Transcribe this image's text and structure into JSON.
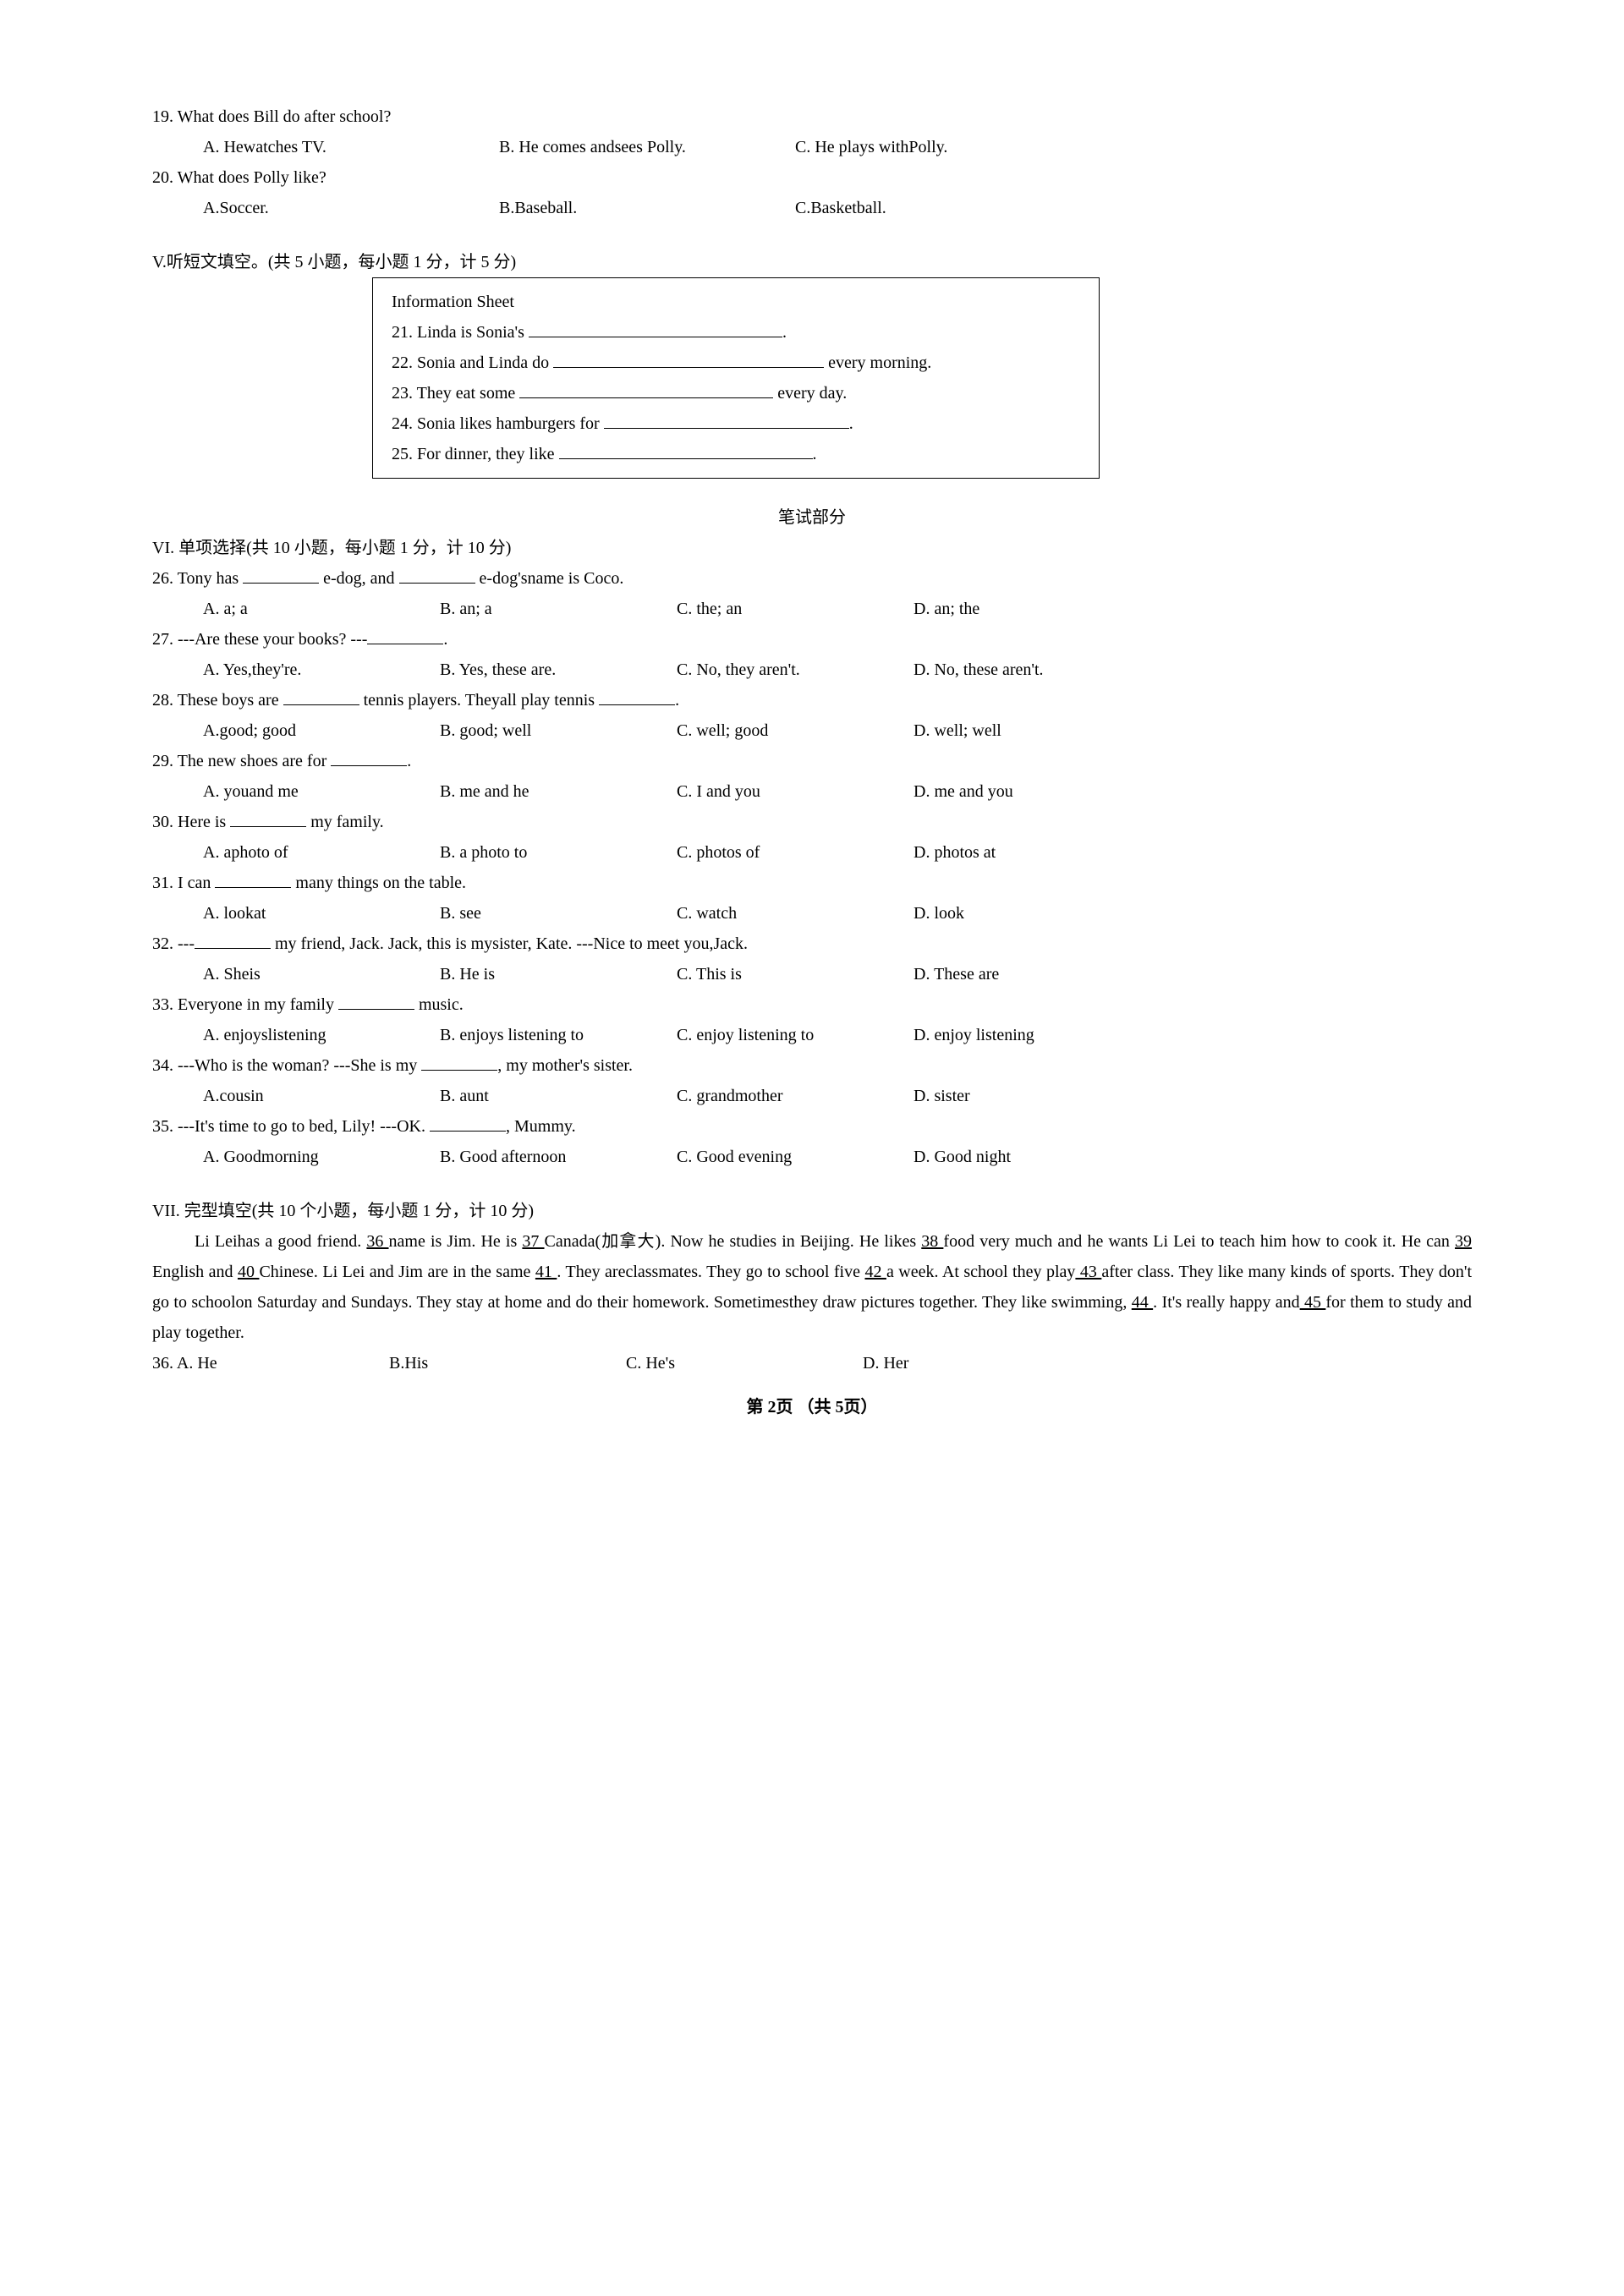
{
  "q19": {
    "stem": "19. What does Bill do after school?",
    "a": "A. Hewatches TV.",
    "b": "B. He comes andsees Polly.",
    "c": "C. He plays withPolly."
  },
  "q20": {
    "stem": "20. What does Polly like?",
    "a": "A.Soccer.",
    "b": "B.Baseball.",
    "c": "C.Basketball."
  },
  "sectionV": "V.听短文填空。(共 5 小题，每小题 1 分，计 5 分)",
  "info_title": "Information Sheet",
  "info21a": "21. Linda is  Sonia's ",
  "info21b": ".",
  "info22a": "22. Sonia and  Linda do ",
  "info22b": " every morning.",
  "info23a": "23. They eat  some ",
  "info23b": " every day.",
  "info24a": "24. Sonia  likes hamburgers for ",
  "info24b": ".",
  "info25a": "25. For  dinner, they like ",
  "info25b": ".",
  "written_title": "笔试部分",
  "sectionVI": "VI. 单项选择(共 10 小题，每小题 1 分，计 10 分)",
  "q26": {
    "stem_a": "26. Tony has ",
    "stem_b": " e-dog, and ",
    "stem_c": " e-dog'sname is Coco.",
    "a": "A. a; a",
    "b": "B. an; a",
    "c": "C. the; an",
    "d": "D. an; the"
  },
  "q27": {
    "stem_a": "27. ---Are these your books?   ---",
    "stem_b": ".",
    "a": "A. Yes,they're.",
    "b": "B. Yes, these are.",
    "c": "C. No, they aren't.",
    "d": "D. No, these aren't."
  },
  "q28": {
    "stem_a": "28. These boys are ",
    "stem_b": " tennis players. Theyall play tennis ",
    "stem_c": ".",
    "a": "A.good; good",
    "b": "B. good; well",
    "c": "C. well; good",
    "d": "D. well; well"
  },
  "q29": {
    "stem_a": "29. The new shoes are for ",
    "stem_b": ".",
    "a": "A. youand me",
    "b": "B. me and he",
    "c": "C. I and you",
    "d": "D. me and you"
  },
  "q30": {
    "stem_a": "30. Here is ",
    "stem_b": " my family.",
    "a": "A. aphoto of",
    "b": "B. a photo to",
    "c": "C. photos of",
    "d": "D. photos at"
  },
  "q31": {
    "stem_a": "31. I can ",
    "stem_b": " many things on the table.",
    "a": "A. lookat",
    "b": "B. see",
    "c": "C. watch",
    "d": "D. look"
  },
  "q32": {
    "stem_a": "32. ---",
    "stem_b": " my friend, Jack. Jack, this is mysister, Kate.    ---Nice to meet you,Jack.",
    "a": "A. Sheis",
    "b": "B. He is",
    "c": "C. This is",
    "d": "D. These are"
  },
  "q33": {
    "stem_a": "33. Everyone in my family ",
    "stem_b": " music.",
    "a": "A. enjoyslistening",
    "b": "B. enjoys listening to",
    "c": "C. enjoy listening to",
    "d": "D. enjoy listening"
  },
  "q34": {
    "stem_a": "34. ---Who is the woman?   ---She is my ",
    "stem_b": ", my mother's sister.",
    "a": "A.cousin",
    "b": "B. aunt",
    "c": "C. grandmother",
    "d": "D. sister"
  },
  "q35": {
    "stem_a": "35. ---It's time to go to bed, Lily!   ---OK. ",
    "stem_b": ", Mummy.",
    "a": "A. Goodmorning",
    "b": "B. Good afternoon",
    "c": "C. Good evening",
    "d": "D. Good night"
  },
  "sectionVII": "VII. 完型填空(共 10 个小题，每小题 1 分，计 10 分)",
  "cloze": {
    "p1a": "Li Leihas a good friend. ",
    "b36": "   36   ",
    "p1b": " name is Jim. He is ",
    "b37": "   37   ",
    "p1c": " Canada(加拿大). Now he studies in Beijing. He likes ",
    "b38": "   38   ",
    "p1d": "food very much and he wants Li Lei to teach him how to cook it. He can ",
    "b39": "   39   ",
    "p1e": "English and ",
    "b40": "   40   ",
    "p1f": " Chinese. Li Lei and Jim are in the same ",
    "b41": "   41   ",
    "p1g": ". They areclassmates. They go to school five ",
    "b42": "   42   ",
    "p1h": " a week. At school they play",
    "b43": "   43   ",
    "p1i": " after class. They like many kinds of sports. They don't go to schoolon Saturday and Sundays. They stay at home and do their homework. Sometimesthey draw pictures together. They like swimming, ",
    "b44": "   44   ",
    "p1j": ". It's really happy and",
    "b45": "   45   ",
    "p1k": " for them to study and play together."
  },
  "q36": {
    "stem": "36. A. He",
    "b": "B.His",
    "c": "C. He's",
    "d": "D. Her"
  },
  "footer": "第 2页 （共 5页）"
}
